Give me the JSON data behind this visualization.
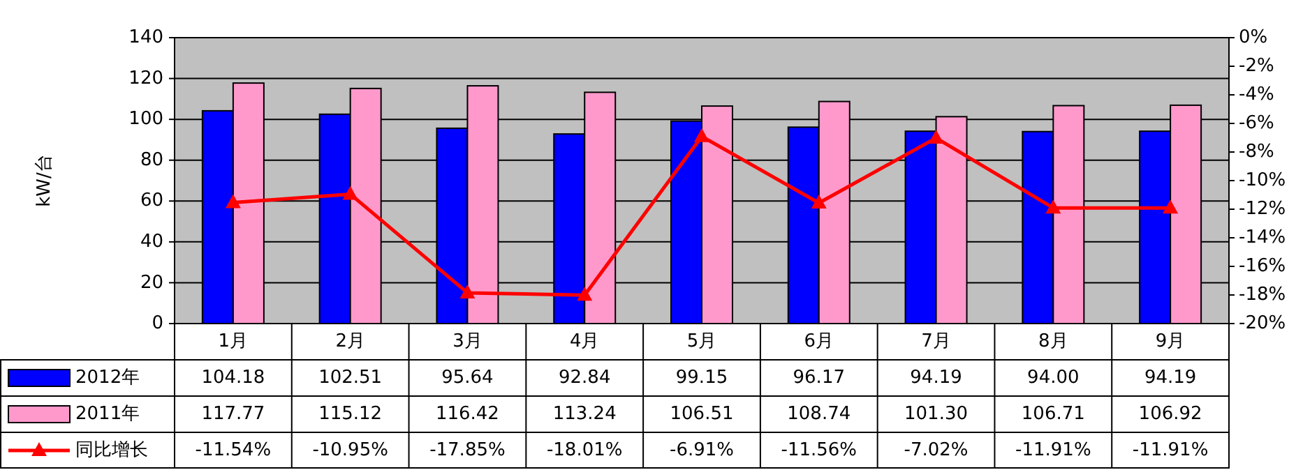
{
  "chart_data": {
    "type": "bar",
    "ylabel": "kW/台",
    "categories": [
      "1月",
      "2月",
      "3月",
      "4月",
      "5月",
      "6月",
      "7月",
      "8月",
      "9月"
    ],
    "ylim": [
      0,
      140
    ],
    "yticks": [
      0,
      20,
      40,
      60,
      80,
      100,
      120,
      140
    ],
    "y2lim": [
      -20,
      0
    ],
    "y2ticks": [
      {
        "value": -20,
        "label": "-20%"
      },
      {
        "value": -18,
        "label": "-18%"
      },
      {
        "value": -16,
        "label": "-16%"
      },
      {
        "value": -14,
        "label": "-14%"
      },
      {
        "value": -12,
        "label": "-12%"
      },
      {
        "value": -10,
        "label": "-10%"
      },
      {
        "value": -8,
        "label": "-8%"
      },
      {
        "value": -6,
        "label": "-6%"
      },
      {
        "value": -4,
        "label": "-4%"
      },
      {
        "value": -2,
        "label": "-2%"
      },
      {
        "value": 0,
        "label": "0%"
      }
    ],
    "grid": "y",
    "legend": "bottom",
    "marker": "triangle",
    "series": [
      {
        "name": "2012年",
        "color": "#0000ff",
        "values": [
          104.18,
          102.51,
          95.64,
          92.84,
          99.15,
          96.17,
          94.19,
          94.0,
          94.19
        ],
        "value_labels": [
          "104.18",
          "102.51",
          "95.64",
          "92.84",
          "99.15",
          "96.17",
          "94.19",
          "94.00",
          "94.19"
        ]
      },
      {
        "name": "2011年",
        "color": "#ff99cc",
        "values": [
          117.77,
          115.12,
          116.42,
          113.24,
          106.51,
          108.74,
          101.3,
          106.71,
          106.92
        ],
        "value_labels": [
          "117.77",
          "115.12",
          "116.42",
          "113.24",
          "106.51",
          "108.74",
          "101.30",
          "106.71",
          "106.92"
        ]
      },
      {
        "name": "同比增长",
        "type": "line",
        "axis": "y2",
        "color": "#ff0000",
        "values": [
          -11.54,
          -10.95,
          -17.85,
          -18.01,
          -6.91,
          -11.56,
          -7.02,
          -11.91,
          -11.91
        ],
        "value_labels": [
          "-11.54%",
          "-10.95%",
          "-17.85%",
          "-18.01%",
          "-6.91%",
          "-11.56%",
          "-7.02%",
          "-11.91%",
          "-11.91%"
        ]
      }
    ]
  }
}
